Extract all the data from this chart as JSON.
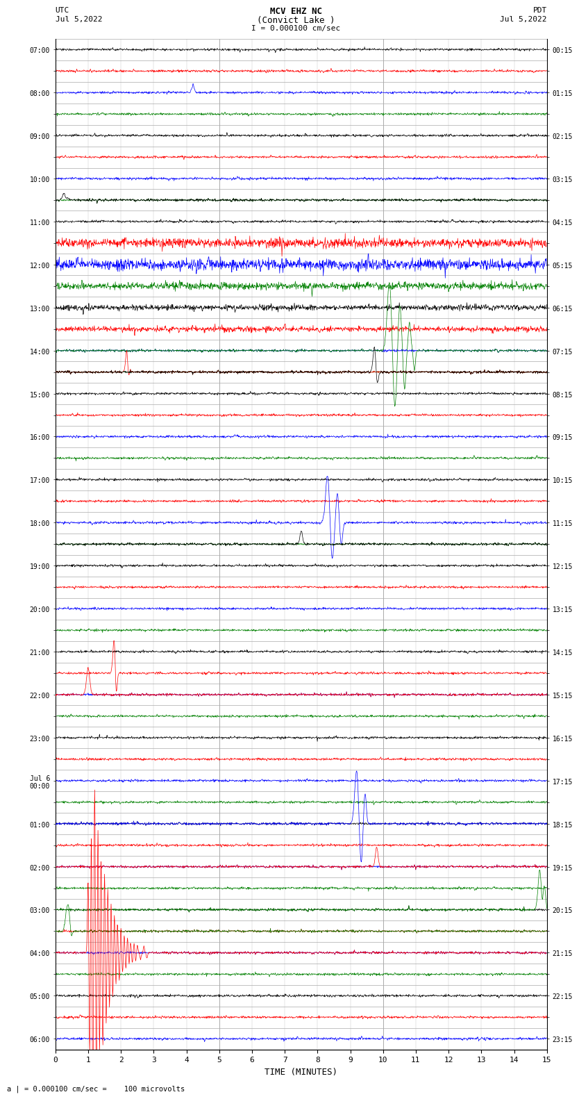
{
  "title_line1": "MCV EHZ NC",
  "title_line2": "(Convict Lake )",
  "title_line3": "I = 0.000100 cm/sec",
  "left_label_1": "UTC",
  "left_label_2": "Jul 5,2022",
  "right_label_1": "PDT",
  "right_label_2": "Jul 5,2022",
  "bottom_label": "a | = 0.000100 cm/sec =    100 microvolts",
  "xlabel": "TIME (MINUTES)",
  "utc_times": [
    "07:00",
    "",
    "08:00",
    "",
    "09:00",
    "",
    "10:00",
    "",
    "11:00",
    "",
    "12:00",
    "",
    "13:00",
    "",
    "14:00",
    "",
    "15:00",
    "",
    "16:00",
    "",
    "17:00",
    "",
    "18:00",
    "",
    "19:00",
    "",
    "20:00",
    "",
    "21:00",
    "",
    "22:00",
    "",
    "23:00",
    "",
    "Jul 6\n00:00",
    "",
    "01:00",
    "",
    "02:00",
    "",
    "03:00",
    "",
    "04:00",
    "",
    "05:00",
    "",
    "06:00"
  ],
  "pdt_times": [
    "00:15",
    "",
    "01:15",
    "",
    "02:15",
    "",
    "03:15",
    "",
    "04:15",
    "",
    "05:15",
    "",
    "06:15",
    "",
    "07:15",
    "",
    "08:15",
    "",
    "09:15",
    "",
    "10:15",
    "",
    "11:15",
    "",
    "12:15",
    "",
    "13:15",
    "",
    "14:15",
    "",
    "15:15",
    "",
    "16:15",
    "",
    "17:15",
    "",
    "18:15",
    "",
    "19:15",
    "",
    "20:15",
    "",
    "21:15",
    "",
    "22:15",
    "",
    "23:15"
  ],
  "n_rows": 47,
  "x_max": 15,
  "bg_color": "#ffffff",
  "trace_colors_cycle": [
    "black",
    "red",
    "blue",
    "green"
  ],
  "grid_color": "#aaaaaa",
  "grid_minor_color": "#cccccc"
}
